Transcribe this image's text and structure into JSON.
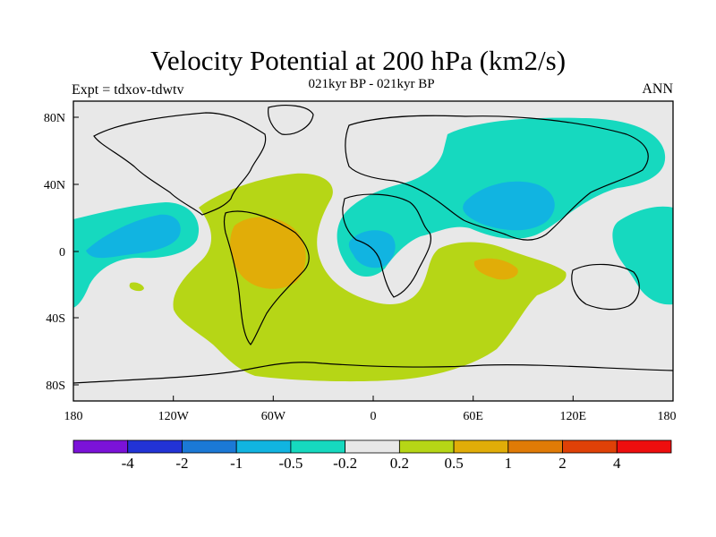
{
  "title": "Velocity Potential at 200 hPa (km2/s)",
  "subtitle": "021kyr BP - 021kyr BP",
  "left_label": "Expt = tdxov-tdwtv",
  "right_label": "ANN",
  "y_ticks": [
    "80N",
    "40N",
    "0",
    "40S",
    "80S"
  ],
  "x_ticks": [
    "180",
    "120W",
    "60W",
    "0",
    "60E",
    "120E",
    "180"
  ],
  "colorbar": {
    "colors": [
      "#7b12d8",
      "#2233d6",
      "#1b79d6",
      "#11b4e1",
      "#16d9bf",
      "#e8e8e8",
      "#b6d616",
      "#e1ad08",
      "#e07b06",
      "#df4107",
      "#ee0e0e"
    ],
    "labels": [
      "-4",
      "-2",
      "-1",
      "-0.5",
      "-0.2",
      "0.2",
      "0.5",
      "1",
      "2",
      "4"
    ]
  }
}
